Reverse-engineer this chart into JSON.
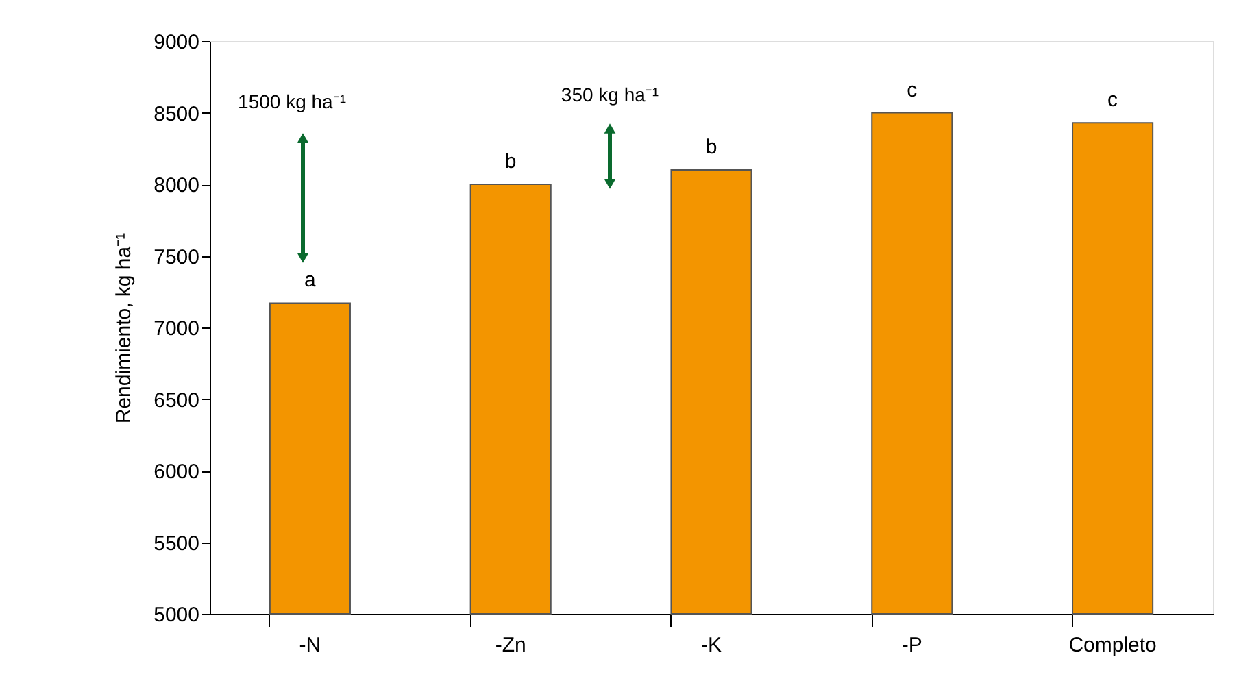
{
  "chart_data": {
    "type": "bar",
    "ylabel": "Rendimiento, kg ha⁻¹",
    "categories": [
      "-N",
      "-Zn",
      "-K",
      "-P",
      "Completo"
    ],
    "values": [
      7170,
      8000,
      8100,
      8500,
      8430
    ],
    "value_labels": [
      "a",
      "b",
      "b",
      "c",
      "c"
    ],
    "color": "#f39500",
    "ylim": [
      5000,
      9000
    ],
    "yticks": [
      5000,
      5500,
      6000,
      6500,
      7000,
      7500,
      8000,
      8500,
      9000
    ],
    "grid": false,
    "annotations": [
      "1500 kg ha⁻¹",
      "350 kg ha⁻¹"
    ]
  }
}
